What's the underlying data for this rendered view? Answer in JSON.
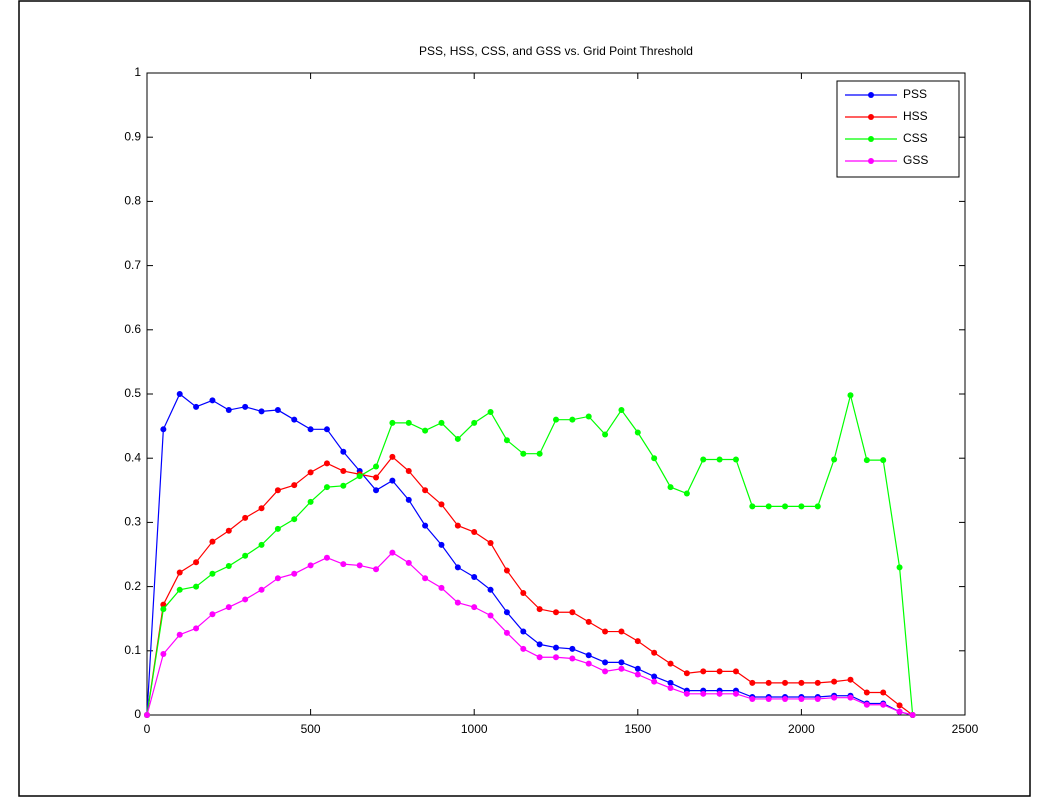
{
  "chart_data": {
    "type": "line",
    "title": "PSS, HSS, CSS, and GSS vs. Grid Point Threshold",
    "x": [
      0,
      50,
      100,
      150,
      200,
      250,
      300,
      350,
      400,
      450,
      500,
      550,
      600,
      650,
      700,
      750,
      800,
      850,
      900,
      950,
      1000,
      1050,
      1100,
      1150,
      1200,
      1250,
      1300,
      1350,
      1400,
      1450,
      1500,
      1550,
      1600,
      1650,
      1700,
      1750,
      1800,
      1850,
      1900,
      1950,
      2000,
      2050,
      2100,
      2150,
      2200,
      2250,
      2300,
      2340
    ],
    "series": [
      {
        "name": "PSS",
        "color": "#0000ff",
        "values": [
          0,
          0.445,
          0.5,
          0.48,
          0.49,
          0.475,
          0.48,
          0.473,
          0.475,
          0.46,
          0.445,
          0.445,
          0.41,
          0.38,
          0.35,
          0.365,
          0.335,
          0.295,
          0.265,
          0.23,
          0.215,
          0.195,
          0.16,
          0.13,
          0.11,
          0.105,
          0.103,
          0.093,
          0.082,
          0.082,
          0.072,
          0.06,
          0.05,
          0.038,
          0.038,
          0.038,
          0.038,
          0.028,
          0.028,
          0.028,
          0.028,
          0.028,
          0.03,
          0.03,
          0.018,
          0.018,
          0.005,
          0
        ]
      },
      {
        "name": "HSS",
        "color": "#ff0000",
        "values": [
          0,
          0.172,
          0.222,
          0.238,
          0.27,
          0.287,
          0.307,
          0.322,
          0.35,
          0.358,
          0.378,
          0.392,
          0.38,
          0.375,
          0.37,
          0.402,
          0.38,
          0.35,
          0.328,
          0.295,
          0.285,
          0.268,
          0.225,
          0.19,
          0.165,
          0.16,
          0.16,
          0.145,
          0.13,
          0.13,
          0.115,
          0.097,
          0.08,
          0.065,
          0.068,
          0.068,
          0.068,
          0.05,
          0.05,
          0.05,
          0.05,
          0.05,
          0.052,
          0.055,
          0.035,
          0.035,
          0.015,
          0
        ]
      },
      {
        "name": "CSS",
        "color": "#00ff00",
        "values": [
          0,
          0.165,
          0.195,
          0.2,
          0.22,
          0.232,
          0.248,
          0.265,
          0.29,
          0.305,
          0.332,
          0.355,
          0.357,
          0.372,
          0.387,
          0.455,
          0.455,
          0.443,
          0.455,
          0.43,
          0.455,
          0.472,
          0.428,
          0.407,
          0.407,
          0.46,
          0.46,
          0.465,
          0.437,
          0.475,
          0.44,
          0.4,
          0.355,
          0.345,
          0.398,
          0.398,
          0.398,
          0.325,
          0.325,
          0.325,
          0.325,
          0.325,
          0.398,
          0.498,
          0.397,
          0.397,
          0.23,
          0
        ]
      },
      {
        "name": "GSS",
        "color": "#ff00ff",
        "values": [
          0,
          0.095,
          0.125,
          0.135,
          0.157,
          0.168,
          0.18,
          0.195,
          0.213,
          0.22,
          0.233,
          0.245,
          0.235,
          0.233,
          0.227,
          0.253,
          0.237,
          0.213,
          0.198,
          0.175,
          0.168,
          0.155,
          0.128,
          0.103,
          0.09,
          0.09,
          0.088,
          0.08,
          0.068,
          0.072,
          0.063,
          0.052,
          0.042,
          0.033,
          0.033,
          0.033,
          0.033,
          0.025,
          0.025,
          0.025,
          0.025,
          0.025,
          0.027,
          0.027,
          0.016,
          0.016,
          0.005,
          0
        ]
      }
    ],
    "xlim": [
      0,
      2500
    ],
    "xticks": [
      0,
      500,
      1000,
      1500,
      2000,
      2500
    ],
    "ylim": [
      0,
      1
    ],
    "yticks": [
      0,
      0.1,
      0.2,
      0.3,
      0.4,
      0.5,
      0.6,
      0.7,
      0.8,
      0.9,
      1
    ],
    "legend": "upper right",
    "marker": "circle"
  }
}
